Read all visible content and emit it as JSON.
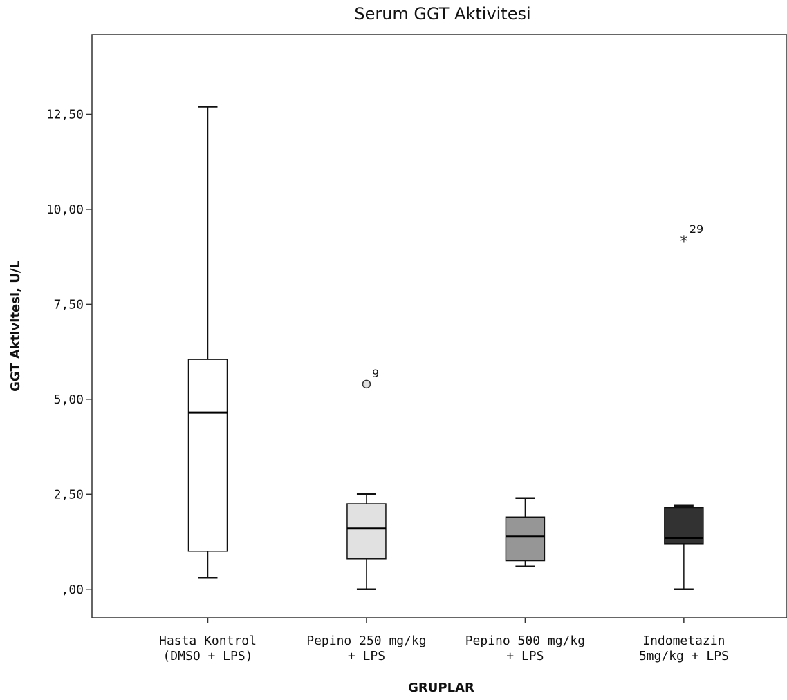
{
  "chart_data": {
    "type": "box",
    "title": "Serum GGT Aktivitesi",
    "xlabel": "GRUPLAR",
    "ylabel": "GGT Aktivitesi, U/L",
    "ylim": [
      -0.75,
      14.6
    ],
    "yticks": [
      0,
      2.5,
      5,
      7.5,
      10,
      12.5
    ],
    "ytick_labels": [
      ",00",
      "2,50",
      "5,00",
      "7,50",
      "10,00",
      "12,50"
    ],
    "grid": false,
    "groups": [
      {
        "label_lines": [
          "Hasta Kontrol",
          "(DMSO + LPS)"
        ],
        "min": 0.3,
        "q1": 1.0,
        "median": 4.65,
        "q3": 6.05,
        "max": 12.7,
        "fill": "#ffffff",
        "outliers": []
      },
      {
        "label_lines": [
          "Pepino 250 mg/kg",
          "+ LPS"
        ],
        "min": 0.0,
        "q1": 0.8,
        "median": 1.6,
        "q3": 2.25,
        "max": 2.5,
        "fill": "#e1e1e1",
        "outliers": [
          {
            "value": 5.4,
            "label": "9",
            "marker": "circle"
          }
        ]
      },
      {
        "label_lines": [
          "Pepino 500 mg/kg",
          "+ LPS"
        ],
        "min": 0.6,
        "q1": 0.75,
        "median": 1.4,
        "q3": 1.9,
        "max": 2.4,
        "fill": "#969696",
        "outliers": []
      },
      {
        "label_lines": [
          "Indometazin",
          "5mg/kg + LPS"
        ],
        "min": 0.0,
        "q1": 1.2,
        "median": 1.35,
        "q3": 2.15,
        "max": 2.2,
        "fill": "#323232",
        "outliers": [
          {
            "value": 9.2,
            "label": "29",
            "marker": "star"
          }
        ]
      }
    ]
  }
}
